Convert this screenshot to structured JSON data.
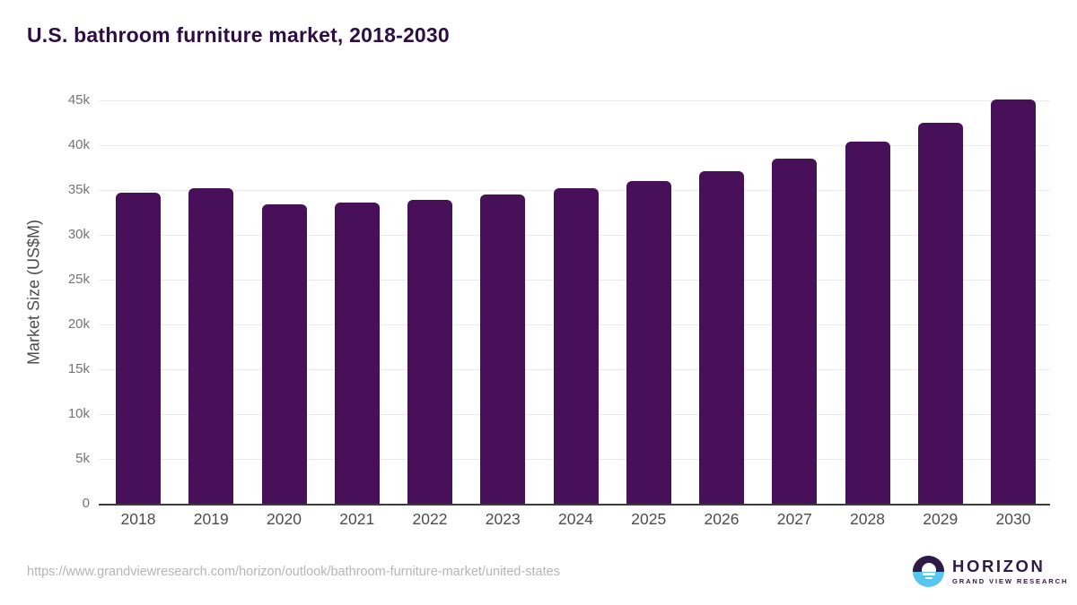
{
  "title": "U.S. bathroom furniture market, 2018-2030",
  "colors": {
    "bar": "#481058",
    "title": "#2e0d45",
    "gridline": "#e9e9ee",
    "baseline": "#3c3c3c",
    "y_tick_label": "#757575",
    "x_tick_label": "#4d4d4d",
    "y_axis_title": "#4d4d4d",
    "source_url": "#b5b5b5",
    "logo_dark": "#2e1a47",
    "logo_blue": "#56c6ef"
  },
  "chart_data": {
    "type": "bar",
    "title": "U.S. bathroom furniture market, 2018-2030",
    "xlabel": "",
    "ylabel": "Market Size (US$M)",
    "categories": [
      "2018",
      "2019",
      "2020",
      "2021",
      "2022",
      "2023",
      "2024",
      "2025",
      "2026",
      "2027",
      "2028",
      "2029",
      "2030"
    ],
    "values": [
      34700,
      35200,
      33400,
      33600,
      33900,
      34500,
      35200,
      36000,
      37100,
      38500,
      40400,
      42500,
      45100
    ],
    "ylim": [
      0,
      45000
    ],
    "yticks": [
      {
        "value": 0,
        "label": "0"
      },
      {
        "value": 5000,
        "label": "5k"
      },
      {
        "value": 10000,
        "label": "10k"
      },
      {
        "value": 15000,
        "label": "15k"
      },
      {
        "value": 20000,
        "label": "20k"
      },
      {
        "value": 25000,
        "label": "25k"
      },
      {
        "value": 30000,
        "label": "30k"
      },
      {
        "value": 35000,
        "label": "35k"
      },
      {
        "value": 40000,
        "label": "40k"
      },
      {
        "value": 45000,
        "label": "45k"
      }
    ],
    "grid": true,
    "legend": false,
    "bar_color": "#481058"
  },
  "footer": {
    "source_url": "https://www.grandviewresearch.com/horizon/outlook/bathroom-furniture-market/united-states",
    "logo": {
      "name": "HORIZON",
      "subtitle": "GRAND VIEW RESEARCH"
    }
  }
}
